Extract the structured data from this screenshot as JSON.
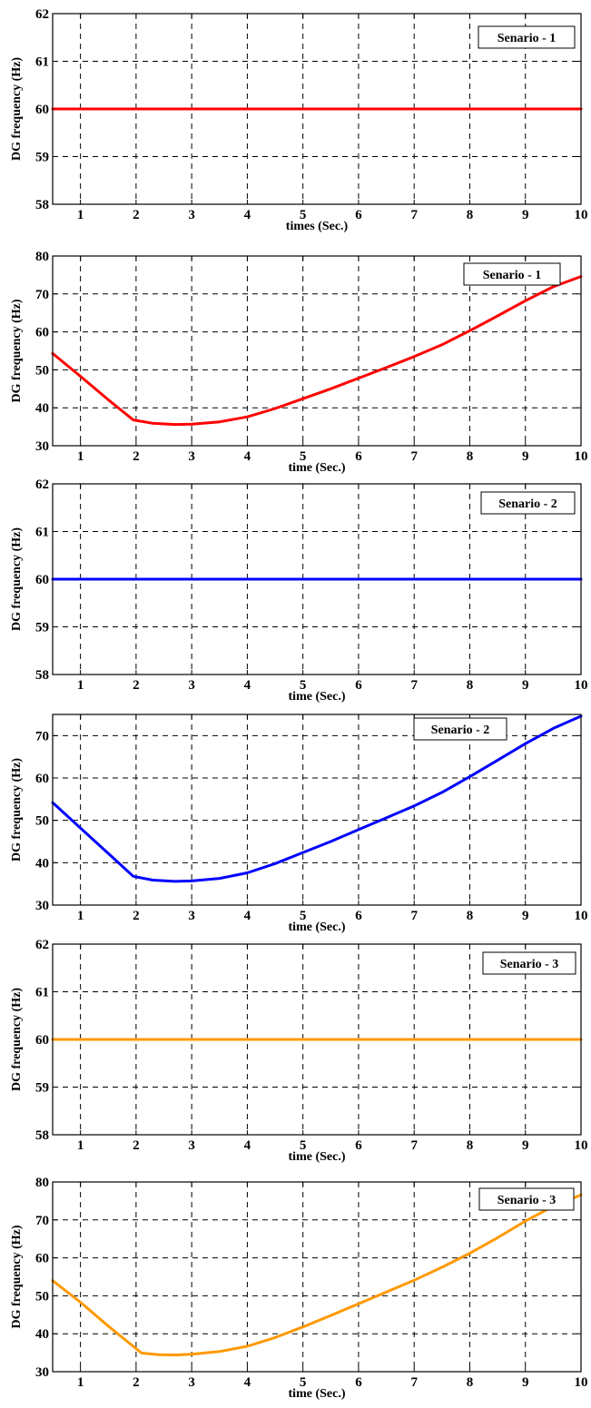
{
  "chart_data": [
    {
      "type": "line",
      "ylabel": "DG frequency (Hz)",
      "xlabel": "times (Sec.)",
      "xlim": [
        0.5,
        10
      ],
      "ylim": [
        58,
        62
      ],
      "xticks": [
        1,
        2,
        3,
        4,
        5,
        6,
        7,
        8,
        9,
        10
      ],
      "yticks": [
        58,
        59,
        60,
        61,
        62
      ],
      "grid": true,
      "legend": "Senario - 1",
      "legend_position": "top-right",
      "series": [
        {
          "name": "Senario - 1",
          "color": "#ff0000",
          "x": [
            0.5,
            10
          ],
          "y": [
            60,
            60
          ]
        }
      ]
    },
    {
      "type": "line",
      "ylabel": "DG frequency (Hz)",
      "xlabel": "time (Sec.)",
      "xlim": [
        0.5,
        10
      ],
      "ylim": [
        30,
        80
      ],
      "xticks": [
        1,
        2,
        3,
        4,
        5,
        6,
        7,
        8,
        9,
        10
      ],
      "yticks": [
        30,
        40,
        50,
        60,
        70,
        80
      ],
      "grid": true,
      "legend": "Senario - 1",
      "legend_position": "top-right",
      "series": [
        {
          "name": "Senario - 1",
          "color": "#ff0000",
          "x": [
            0.5,
            1,
            1.5,
            1.95,
            2.3,
            2.7,
            3.0,
            3.5,
            4.0,
            4.5,
            5.0,
            5.5,
            6.0,
            6.5,
            7.0,
            7.5,
            8.0,
            8.5,
            9.0,
            9.5,
            10.0
          ],
          "y": [
            54.3,
            48.3,
            42.1,
            36.8,
            35.9,
            35.6,
            35.7,
            36.3,
            37.6,
            39.8,
            42.4,
            45.0,
            47.8,
            50.6,
            53.5,
            56.6,
            60.3,
            64.2,
            68.2,
            71.9,
            74.6
          ]
        }
      ]
    },
    {
      "type": "line",
      "ylabel": "DG frequency (Hz)",
      "xlabel": "time (Sec.)",
      "xlim": [
        0.5,
        10
      ],
      "ylim": [
        58,
        62
      ],
      "xticks": [
        1,
        2,
        3,
        4,
        5,
        6,
        7,
        8,
        9,
        10
      ],
      "yticks": [
        58,
        59,
        60,
        61,
        62
      ],
      "grid": true,
      "legend": "Senario - 2",
      "legend_position": "top-right",
      "series": [
        {
          "name": "Senario - 2",
          "color": "#0000ff",
          "x": [
            0.5,
            10
          ],
          "y": [
            60,
            60
          ]
        }
      ]
    },
    {
      "type": "line",
      "ylabel": "DG frequency (Hz)",
      "xlabel": "time (Sec.)",
      "xlim": [
        0.5,
        10
      ],
      "ylim": [
        30,
        75
      ],
      "xticks": [
        1,
        2,
        3,
        4,
        5,
        6,
        7,
        8,
        9,
        10
      ],
      "yticks": [
        30,
        40,
        50,
        60,
        70
      ],
      "grid": true,
      "legend": "Senario - 2",
      "legend_position": "top-right",
      "series": [
        {
          "name": "Senario - 2",
          "color": "#0000ff",
          "x": [
            0.5,
            1,
            1.5,
            1.95,
            2.3,
            2.7,
            3.0,
            3.5,
            4.0,
            4.5,
            5.0,
            5.5,
            6.0,
            6.5,
            7.0,
            7.5,
            8.0,
            8.5,
            9.0,
            9.5,
            10.0
          ],
          "y": [
            54.2,
            48.2,
            42.2,
            36.8,
            35.9,
            35.6,
            35.7,
            36.3,
            37.6,
            39.8,
            42.4,
            45.0,
            47.8,
            50.6,
            53.4,
            56.6,
            60.3,
            64.2,
            68.1,
            71.7,
            74.6
          ]
        }
      ]
    },
    {
      "type": "line",
      "ylabel": "DG frequency (Hz)",
      "xlabel": "time (Sec.)",
      "xlim": [
        0.5,
        10
      ],
      "ylim": [
        58,
        62
      ],
      "xticks": [
        1,
        2,
        3,
        4,
        5,
        6,
        7,
        8,
        9,
        10
      ],
      "yticks": [
        58,
        59,
        60,
        61,
        62
      ],
      "grid": true,
      "legend": "Senario - 3",
      "legend_position": "top-right",
      "series": [
        {
          "name": "Senario - 3",
          "color": "#ff9900",
          "x": [
            0.5,
            10
          ],
          "y": [
            60,
            60
          ]
        }
      ]
    },
    {
      "type": "line",
      "ylabel": "DG frequency (Hz)",
      "xlabel": "time (Sec.)",
      "xlim": [
        0.5,
        10
      ],
      "ylim": [
        30,
        80
      ],
      "xticks": [
        1,
        2,
        3,
        4,
        5,
        6,
        7,
        8,
        9,
        10
      ],
      "yticks": [
        30,
        40,
        50,
        60,
        70,
        80
      ],
      "grid": true,
      "legend": "Senario - 3",
      "legend_position": "top-right",
      "series": [
        {
          "name": "Senario - 3",
          "color": "#ff9900",
          "x": [
            0.5,
            1,
            1.5,
            2.1,
            2.4,
            2.7,
            3.0,
            3.5,
            4.0,
            4.5,
            5.0,
            5.5,
            6.0,
            6.5,
            7.0,
            7.5,
            8.0,
            8.5,
            9.0,
            9.5,
            10.0
          ],
          "y": [
            54.0,
            48.3,
            42.0,
            34.9,
            34.5,
            34.4,
            34.6,
            35.3,
            36.7,
            39.0,
            41.8,
            44.8,
            47.9,
            51.0,
            54.1,
            57.5,
            61.2,
            65.3,
            69.7,
            73.6,
            76.6
          ]
        }
      ]
    }
  ]
}
